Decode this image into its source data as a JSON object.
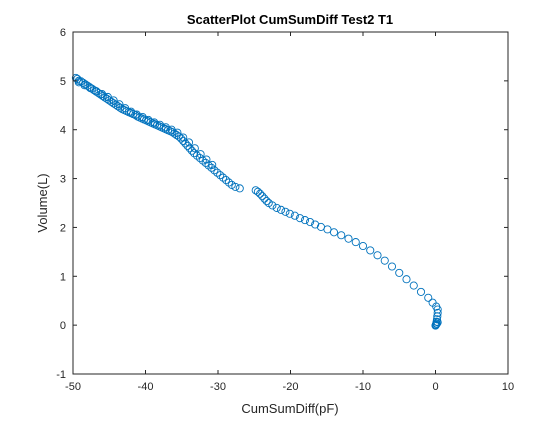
{
  "chart_data": {
    "type": "scatter",
    "title": "ScatterPlot CumSumDiff Test2 T1",
    "xlabel": "CumSumDiff(pF)",
    "ylabel": "Volume(L)",
    "xlim": [
      -50,
      10
    ],
    "ylim": [
      -1,
      6
    ],
    "xticks": [
      -50,
      -40,
      -30,
      -20,
      -10,
      0,
      10
    ],
    "yticks": [
      -1,
      0,
      1,
      2,
      3,
      4,
      5,
      6
    ],
    "marker": "open-circle",
    "marker_color": "#0072BD",
    "grid": false,
    "box": true,
    "series": [
      {
        "points": [
          [
            -49.6,
            5.06
          ],
          [
            -49.4,
            5.04
          ],
          [
            -49.2,
            5.0
          ],
          [
            -48.9,
            4.99
          ],
          [
            -48.6,
            4.96
          ],
          [
            -48.3,
            4.93
          ],
          [
            -48.0,
            4.9
          ],
          [
            -47.7,
            4.87
          ],
          [
            -47.4,
            4.84
          ],
          [
            -47.1,
            4.81
          ],
          [
            -46.8,
            4.78
          ],
          [
            -46.5,
            4.75
          ],
          [
            -46.2,
            4.72
          ],
          [
            -45.9,
            4.69
          ],
          [
            -45.6,
            4.66
          ],
          [
            -45.3,
            4.63
          ],
          [
            -45.0,
            4.6
          ],
          [
            -44.7,
            4.57
          ],
          [
            -44.4,
            4.54
          ],
          [
            -44.1,
            4.51
          ],
          [
            -43.8,
            4.48
          ],
          [
            -43.5,
            4.45
          ],
          [
            -43.2,
            4.42
          ],
          [
            -42.9,
            4.4
          ],
          [
            -42.6,
            4.38
          ],
          [
            -42.3,
            4.36
          ],
          [
            -42.0,
            4.34
          ],
          [
            -41.7,
            4.32
          ],
          [
            -41.4,
            4.3
          ],
          [
            -41.1,
            4.27
          ],
          [
            -40.8,
            4.25
          ],
          [
            -40.5,
            4.23
          ],
          [
            -40.2,
            4.21
          ],
          [
            -39.9,
            4.19
          ],
          [
            -39.6,
            4.17
          ],
          [
            -39.3,
            4.15
          ],
          [
            -39.0,
            4.13
          ],
          [
            -38.7,
            4.11
          ],
          [
            -38.4,
            4.09
          ],
          [
            -38.1,
            4.07
          ],
          [
            -37.8,
            4.05
          ],
          [
            -37.5,
            4.03
          ],
          [
            -37.2,
            4.01
          ],
          [
            -36.9,
            3.99
          ],
          [
            -36.6,
            3.97
          ],
          [
            -36.3,
            3.95
          ],
          [
            -36.0,
            3.92
          ],
          [
            -35.7,
            3.89
          ],
          [
            -35.4,
            3.86
          ],
          [
            -35.1,
            3.82
          ],
          [
            -34.8,
            3.77
          ],
          [
            -34.5,
            3.72
          ],
          [
            -34.2,
            3.67
          ],
          [
            -33.9,
            3.62
          ],
          [
            -33.6,
            3.57
          ],
          [
            -33.3,
            3.52
          ],
          [
            -32.9,
            3.47
          ],
          [
            -32.5,
            3.42
          ],
          [
            -32.1,
            3.37
          ],
          [
            -31.7,
            3.32
          ],
          [
            -31.3,
            3.27
          ],
          [
            -30.9,
            3.22
          ],
          [
            -30.5,
            3.17
          ],
          [
            -30.1,
            3.12
          ],
          [
            -29.7,
            3.07
          ],
          [
            -29.3,
            3.02
          ],
          [
            -28.9,
            2.97
          ],
          [
            -28.5,
            2.92
          ],
          [
            -28.1,
            2.87
          ],
          [
            -27.6,
            2.83
          ],
          [
            -27.0,
            2.8
          ],
          [
            -49.2,
            4.97
          ],
          [
            -48.4,
            4.91
          ],
          [
            -47.6,
            4.85
          ],
          [
            -46.8,
            4.79
          ],
          [
            -46.0,
            4.73
          ],
          [
            -45.2,
            4.67
          ],
          [
            -44.4,
            4.6
          ],
          [
            -43.6,
            4.52
          ],
          [
            -42.8,
            4.44
          ],
          [
            -42.0,
            4.37
          ],
          [
            -41.2,
            4.31
          ],
          [
            -40.4,
            4.26
          ],
          [
            -39.6,
            4.2
          ],
          [
            -38.8,
            4.15
          ],
          [
            -38.0,
            4.1
          ],
          [
            -37.2,
            4.05
          ],
          [
            -36.4,
            4.0
          ],
          [
            -35.6,
            3.94
          ],
          [
            -34.8,
            3.84
          ],
          [
            -34.0,
            3.74
          ],
          [
            -33.2,
            3.62
          ],
          [
            -32.4,
            3.5
          ],
          [
            -31.6,
            3.39
          ],
          [
            -30.8,
            3.28
          ],
          [
            -24.8,
            2.76
          ],
          [
            -24.5,
            2.73
          ],
          [
            -24.2,
            2.69
          ],
          [
            -23.9,
            2.64
          ],
          [
            -23.6,
            2.59
          ],
          [
            -23.3,
            2.54
          ],
          [
            -23.0,
            2.5
          ],
          [
            -22.5,
            2.45
          ],
          [
            -21.9,
            2.4
          ],
          [
            -21.3,
            2.36
          ],
          [
            -20.7,
            2.32
          ],
          [
            -20.1,
            2.28
          ],
          [
            -19.4,
            2.24
          ],
          [
            -18.7,
            2.19
          ],
          [
            -18.0,
            2.15
          ],
          [
            -17.3,
            2.11
          ],
          [
            -16.6,
            2.06
          ],
          [
            -15.8,
            2.01
          ],
          [
            -14.9,
            1.96
          ],
          [
            -14.0,
            1.9
          ],
          [
            -13.0,
            1.84
          ],
          [
            -12.0,
            1.77
          ],
          [
            -11.0,
            1.7
          ],
          [
            -10.0,
            1.62
          ],
          [
            -9.0,
            1.53
          ],
          [
            -8.0,
            1.43
          ],
          [
            -7.0,
            1.32
          ],
          [
            -6.0,
            1.2
          ],
          [
            -5.0,
            1.07
          ],
          [
            -4.0,
            0.94
          ],
          [
            -3.0,
            0.81
          ],
          [
            -2.0,
            0.68
          ],
          [
            -1.0,
            0.56
          ],
          [
            -0.4,
            0.46
          ],
          [
            0.1,
            0.38
          ],
          [
            0.3,
            0.32
          ],
          [
            0.3,
            0.25
          ],
          [
            0.25,
            0.18
          ],
          [
            0.2,
            0.12
          ],
          [
            0.15,
            0.07
          ],
          [
            0.1,
            0.03
          ],
          [
            0.05,
            0.0
          ],
          [
            0.0,
            -0.01
          ],
          [
            0.05,
            0.01
          ],
          [
            0.2,
            0.03
          ],
          [
            0.3,
            0.06
          ]
        ]
      }
    ]
  }
}
